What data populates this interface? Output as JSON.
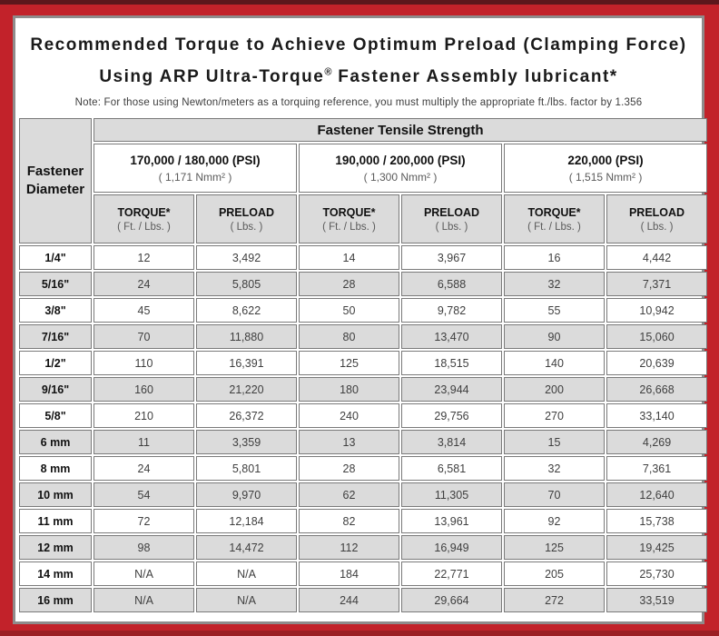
{
  "title": {
    "line1": "Recommended Torque to Achieve Optimum Preload (Clamping Force)",
    "line2_pre": "Using ARP Ultra-Torque",
    "line2_sup": "®",
    "line2_post": " Fastener Assembly lubricant*"
  },
  "note": "Note: For those using Newton/meters as a torquing reference, you must multiply the appropriate ft./lbs. factor by 1.356",
  "table": {
    "diameter_header": "Fastener Diameter",
    "tensile_header": "Fastener Tensile Strength",
    "groups": [
      {
        "psi": "170,000 / 180,000 (PSI)",
        "nmm": "( 1,171 Nmm² )"
      },
      {
        "psi": "190,000 / 200,000 (PSI)",
        "nmm": "( 1,300 Nmm² )"
      },
      {
        "psi": "220,000 (PSI)",
        "nmm": "( 1,515 Nmm² )"
      }
    ],
    "sub_headers": {
      "torque_label": "TORQUE*",
      "torque_unit": "( Ft. / Lbs. )",
      "preload_label": "PRELOAD",
      "preload_unit": "( Lbs. )"
    },
    "rows": [
      {
        "d": "1/4\"",
        "v": [
          "12",
          "3,492",
          "14",
          "3,967",
          "16",
          "4,442"
        ]
      },
      {
        "d": "5/16\"",
        "v": [
          "24",
          "5,805",
          "28",
          "6,588",
          "32",
          "7,371"
        ]
      },
      {
        "d": "3/8\"",
        "v": [
          "45",
          "8,622",
          "50",
          "9,782",
          "55",
          "10,942"
        ]
      },
      {
        "d": "7/16\"",
        "v": [
          "70",
          "11,880",
          "80",
          "13,470",
          "90",
          "15,060"
        ]
      },
      {
        "d": "1/2\"",
        "v": [
          "110",
          "16,391",
          "125",
          "18,515",
          "140",
          "20,639"
        ]
      },
      {
        "d": "9/16\"",
        "v": [
          "160",
          "21,220",
          "180",
          "23,944",
          "200",
          "26,668"
        ]
      },
      {
        "d": "5/8\"",
        "v": [
          "210",
          "26,372",
          "240",
          "29,756",
          "270",
          "33,140"
        ]
      },
      {
        "d": "6 mm",
        "v": [
          "11",
          "3,359",
          "13",
          "3,814",
          "15",
          "4,269"
        ]
      },
      {
        "d": "8 mm",
        "v": [
          "24",
          "5,801",
          "28",
          "6,581",
          "32",
          "7,361"
        ]
      },
      {
        "d": "10 mm",
        "v": [
          "54",
          "9,970",
          "62",
          "11,305",
          "70",
          "12,640"
        ]
      },
      {
        "d": "11 mm",
        "v": [
          "72",
          "12,184",
          "82",
          "13,961",
          "92",
          "15,738"
        ]
      },
      {
        "d": "12 mm",
        "v": [
          "98",
          "14,472",
          "112",
          "16,949",
          "125",
          "19,425"
        ]
      },
      {
        "d": "14 mm",
        "v": [
          "N/A",
          "N/A",
          "184",
          "22,771",
          "205",
          "25,730"
        ]
      },
      {
        "d": "16 mm",
        "v": [
          "N/A",
          "N/A",
          "244",
          "29,664",
          "272",
          "33,519"
        ]
      }
    ]
  }
}
